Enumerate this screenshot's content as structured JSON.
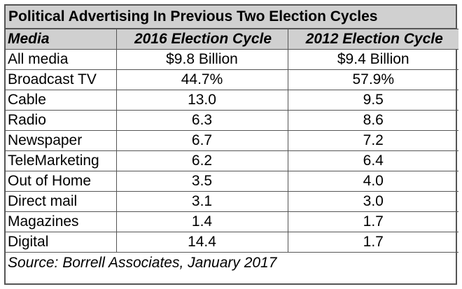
{
  "title": "Political Advertising In Previous Two Election Cycles",
  "headers": [
    "Media",
    "2016 Election Cycle",
    "2012 Election Cycle"
  ],
  "rows": [
    {
      "media": "All media",
      "y2016": "$9.8 Billion",
      "y2012": "$9.4 Billion"
    },
    {
      "media": "Broadcast TV",
      "y2016": "44.7%",
      "y2012": "57.9%"
    },
    {
      "media": "Cable",
      "y2016": "13.0",
      "y2012": "9.5"
    },
    {
      "media": "Radio",
      "y2016": "6.3",
      "y2012": "8.6"
    },
    {
      "media": "Newspaper",
      "y2016": "6.7",
      "y2012": "7.2"
    },
    {
      "media": "TeleMarketing",
      "y2016": "6.2",
      "y2012": "6.4"
    },
    {
      "media": "Out of Home",
      "y2016": "3.5",
      "y2012": "4.0"
    },
    {
      "media": "Direct mail",
      "y2016": "3.1",
      "y2012": "3.0"
    },
    {
      "media": "Magazines",
      "y2016": "1.4",
      "y2012": "1.7"
    },
    {
      "media": "Digital",
      "y2016": "14.4",
      "y2012": "1.7"
    }
  ],
  "source": "Source: Borrell Associates, January 2017",
  "colors": {
    "header_background": "#d0d0d0",
    "border": "#555555"
  }
}
